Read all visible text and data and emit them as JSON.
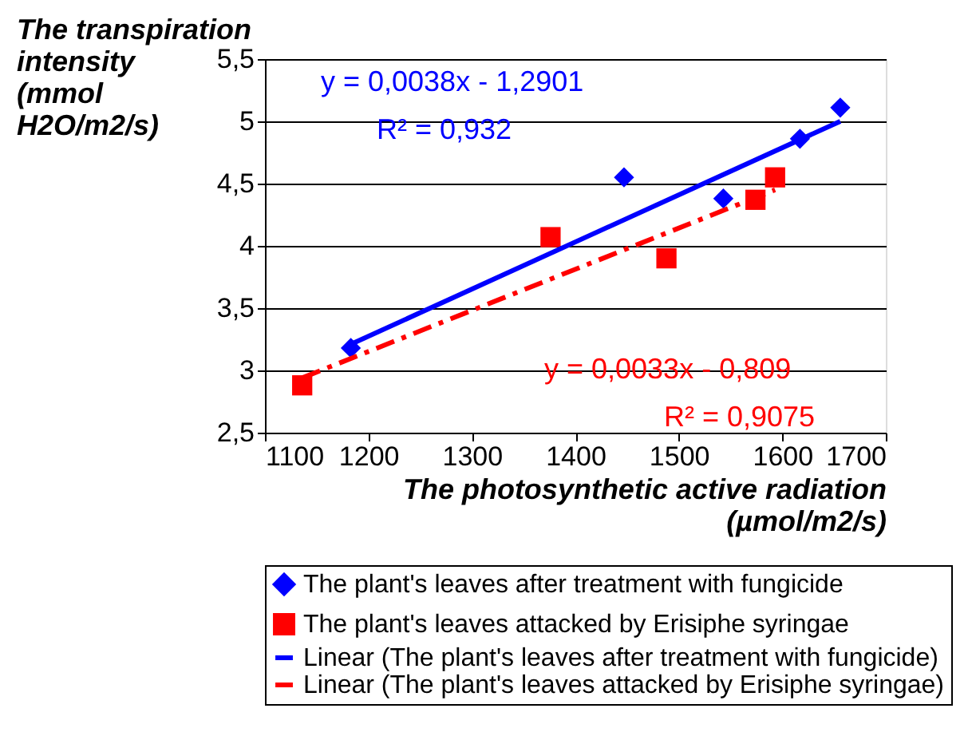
{
  "chart_data": {
    "type": "scatter",
    "xlabel": "The photosynthetic active radiation (µmol/m2/s)",
    "ylabel": "The transpiration intensity (mmol H2O/m2/s)",
    "xlim": [
      1100,
      1700
    ],
    "xticks": [
      1100,
      1200,
      1300,
      1400,
      1500,
      1600,
      1700
    ],
    "ylim": [
      2.5,
      5.5
    ],
    "yticks": [
      {
        "value": 2.5,
        "label": "2,5"
      },
      3,
      {
        "value": 3.5,
        "label": "3,5"
      },
      4,
      {
        "value": 4.5,
        "label": "4,5"
      },
      5,
      {
        "value": 5.5,
        "label": "5,5"
      }
    ],
    "grid": "y",
    "legend": "bottom",
    "series": [
      {
        "name": "The plant's leaves after treatment with fungicide",
        "marker": "diamond",
        "color": "#0000ff",
        "x": [
          1183,
          1447,
          1543,
          1617,
          1656
        ],
        "values": [
          3.18,
          4.55,
          4.38,
          4.86,
          5.11
        ]
      },
      {
        "name": "The plant's leaves attacked by Erisiphe syringae",
        "marker": "square",
        "color": "#ff0000",
        "x": [
          1136,
          1376,
          1488,
          1574,
          1593
        ],
        "values": [
          2.88,
          4.07,
          3.9,
          4.37,
          4.55
        ]
      },
      {
        "name": "Linear (The plant's leaves after treatment with fungicide)",
        "type": "line",
        "line_style": "solid",
        "color": "#0000ff",
        "x": [
          1183,
          1656
        ],
        "values": [
          3.21,
          5.0
        ]
      },
      {
        "name": "Linear (The plant's leaves attacked by Erisiphe syringae)",
        "type": "line",
        "line_style": "dashed",
        "color": "#ff0000",
        "x": [
          1136,
          1593
        ],
        "values": [
          2.94,
          4.45
        ]
      }
    ],
    "annotations": [
      "y = 0,0038x - 1,2901",
      "R² = 0,932",
      "y = 0,0033x - 0,809",
      "R² = 0,9075"
    ]
  }
}
